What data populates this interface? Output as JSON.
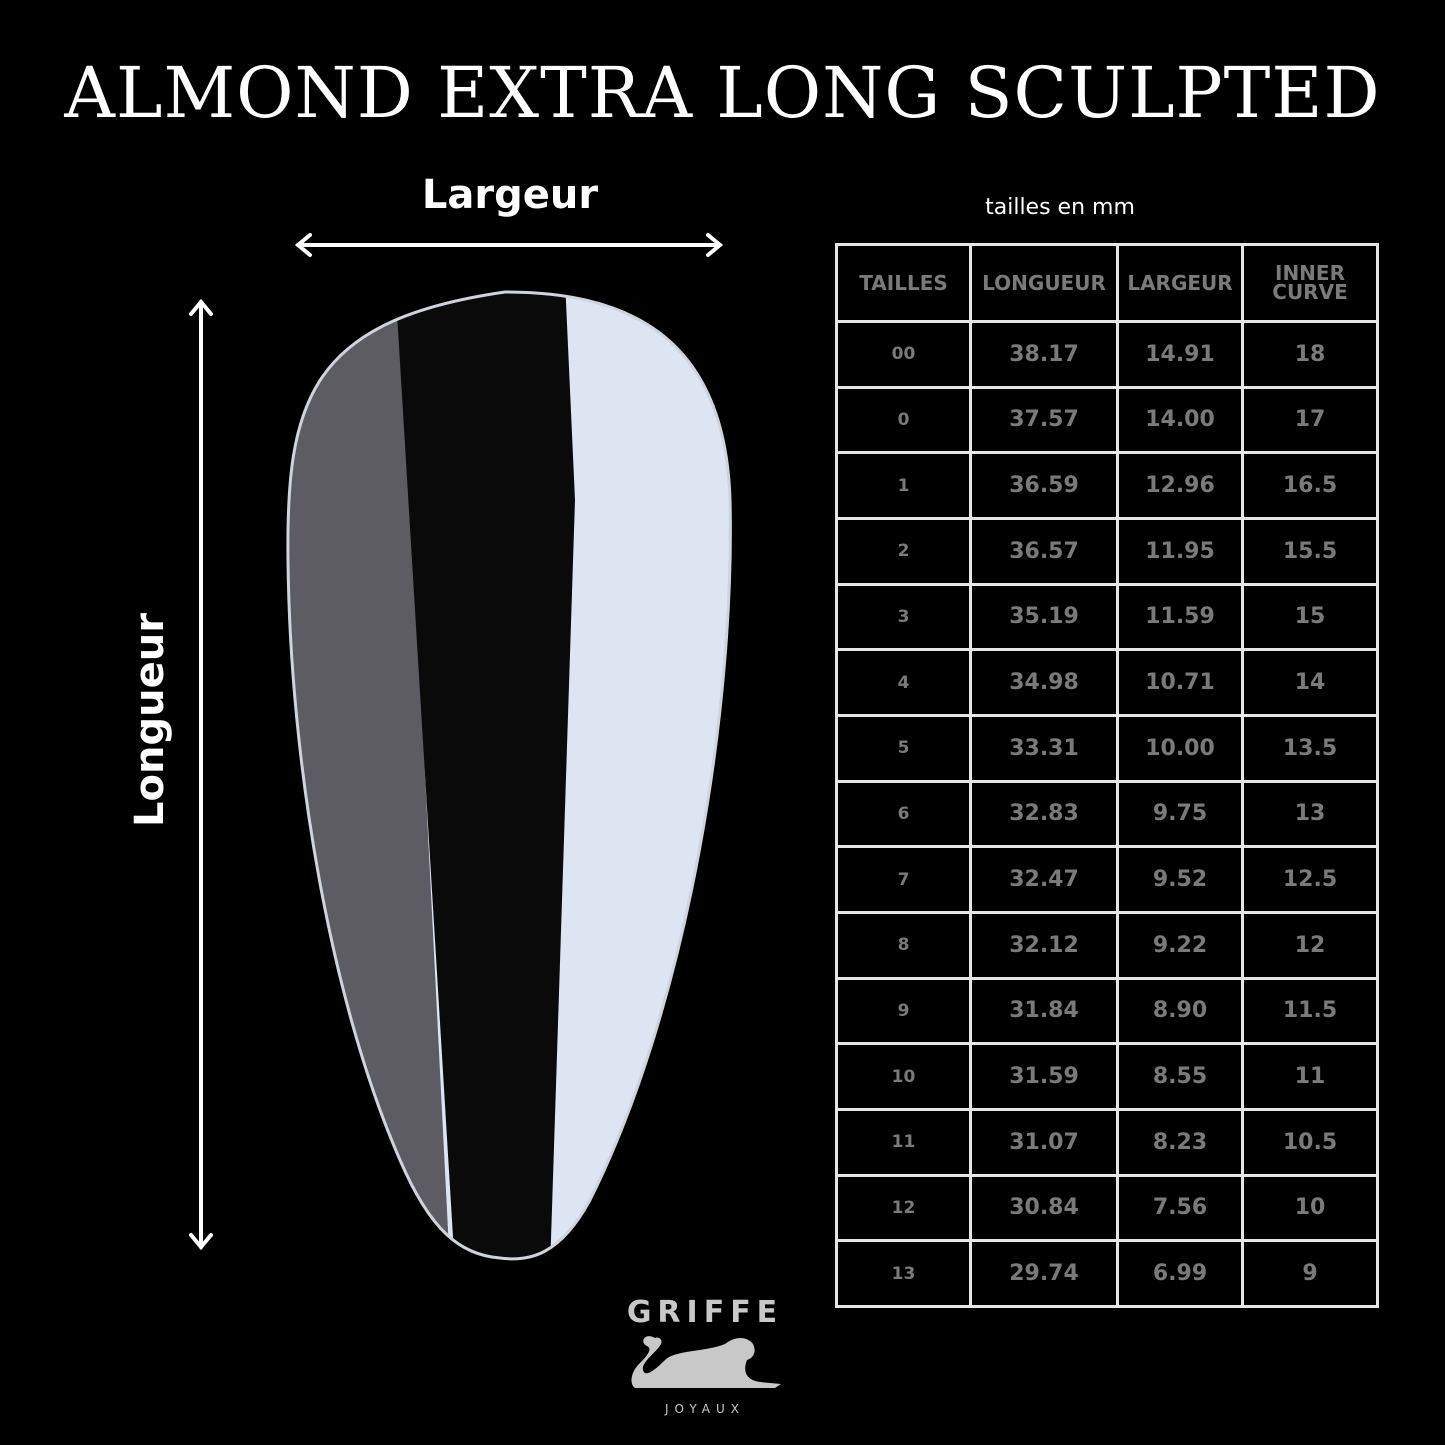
{
  "title": "ALMOND EXTRA LONG SCULPTED",
  "labels": {
    "width": "Largeur",
    "length": "Longueur",
    "unit_note": "tailles en mm"
  },
  "table": {
    "headers": [
      "TAILLES",
      "LONGUEUR",
      "LARGEUR",
      "INNER CURVE"
    ],
    "rows": [
      [
        "00",
        "38.17",
        "14.91",
        "18"
      ],
      [
        "0",
        "37.57",
        "14.00",
        "17"
      ],
      [
        "1",
        "36.59",
        "12.96",
        "16.5"
      ],
      [
        "2",
        "36.57",
        "11.95",
        "15.5"
      ],
      [
        "3",
        "35.19",
        "11.59",
        "15"
      ],
      [
        "4",
        "34.98",
        "10.71",
        "14"
      ],
      [
        "5",
        "33.31",
        "10.00",
        "13.5"
      ],
      [
        "6",
        "32.83",
        "9.75",
        "13"
      ],
      [
        "7",
        "32.47",
        "9.52",
        "12.5"
      ],
      [
        "8",
        "32.12",
        "9.22",
        "12"
      ],
      [
        "9",
        "31.84",
        "8.90",
        "11.5"
      ],
      [
        "10",
        "31.59",
        "8.55",
        "11"
      ],
      [
        "11",
        "31.07",
        "8.23",
        "10.5"
      ],
      [
        "12",
        "30.84",
        "7.56",
        "10"
      ],
      [
        "13",
        "29.74",
        "6.99",
        "9"
      ]
    ]
  },
  "logo": {
    "brand": "GRIFFE",
    "sub": "JOYAUX",
    "icon": "panther-icon"
  },
  "colors": {
    "background": "#000000",
    "table_text": "#7a7a7a",
    "table_border": "#e6e6e6"
  }
}
